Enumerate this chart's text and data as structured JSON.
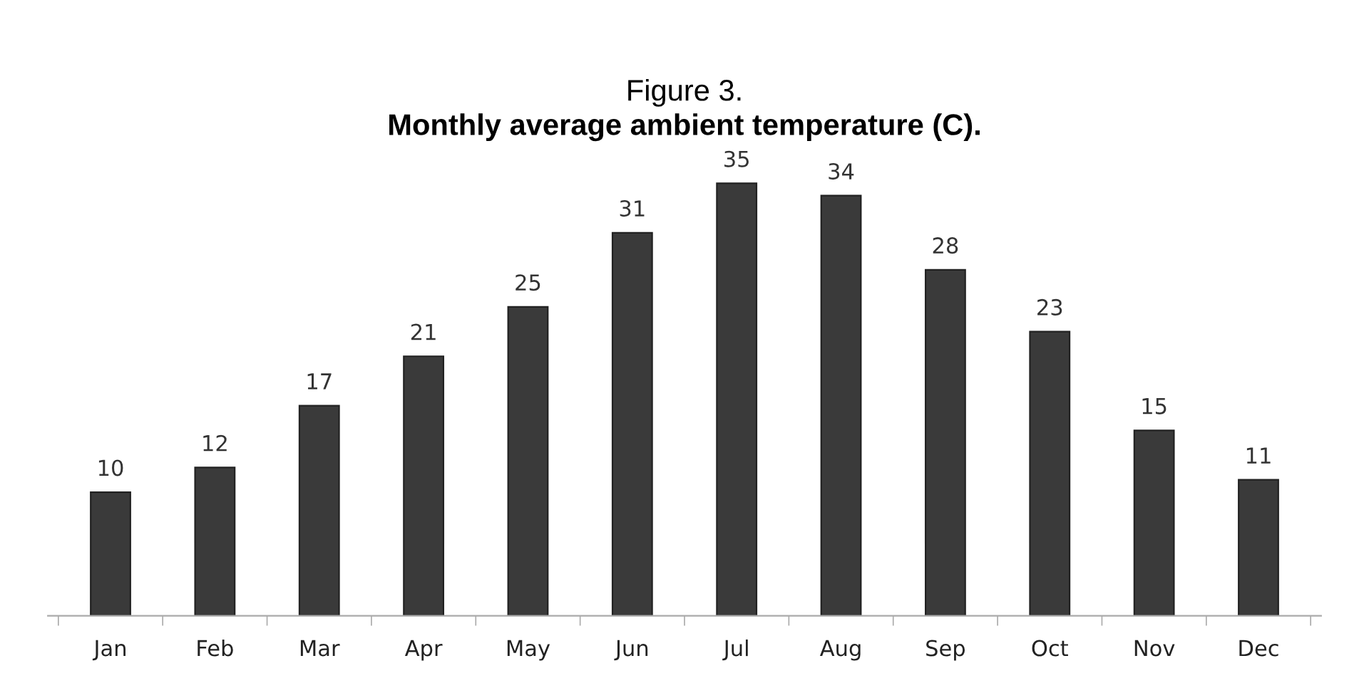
{
  "chart_data": {
    "type": "bar",
    "title": "Figure 3.",
    "subtitle": "Monthly average ambient temperature (C).",
    "categories": [
      "Jan",
      "Feb",
      "Mar",
      "Apr",
      "May",
      "Jun",
      "Jul",
      "Aug",
      "Sep",
      "Oct",
      "Nov",
      "Dec"
    ],
    "values": [
      10,
      12,
      17,
      21,
      25,
      31,
      35,
      34,
      28,
      23,
      15,
      11
    ],
    "color": "#3a3a3a",
    "data_labels": true,
    "grid": false,
    "legend": false
  }
}
